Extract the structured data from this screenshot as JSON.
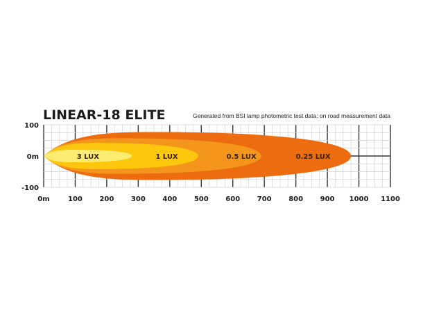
{
  "chart_data": {
    "type": "area",
    "title": "LINEAR-18 ELITE",
    "subtitle": "Generated from BSI lamp photometric test data: on road measurement data",
    "xlim": [
      0,
      1100
    ],
    "ylim": [
      -100,
      100
    ],
    "x_ticks": [
      "0m",
      "100",
      "200",
      "300",
      "400",
      "500",
      "600",
      "700",
      "800",
      "900",
      "1000",
      "1100"
    ],
    "y_ticks": [
      "100",
      "0m",
      "-100"
    ],
    "grid": true,
    "contours": [
      {
        "label": "0.25 LUX",
        "reach_m": 975,
        "half_width_m": 77,
        "color": "#ee6c10",
        "label_x_m": 800
      },
      {
        "label": "0.5 LUX",
        "reach_m": 690,
        "half_width_m": 57,
        "color": "#f5961c",
        "label_x_m": 580
      },
      {
        "label": "1 LUX",
        "reach_m": 490,
        "half_width_m": 42,
        "color": "#fcc70c",
        "label_x_m": 355
      },
      {
        "label": "3 LUX",
        "reach_m": 280,
        "half_width_m": 20,
        "color": "#fdec72",
        "label_x_m": 105
      }
    ]
  }
}
